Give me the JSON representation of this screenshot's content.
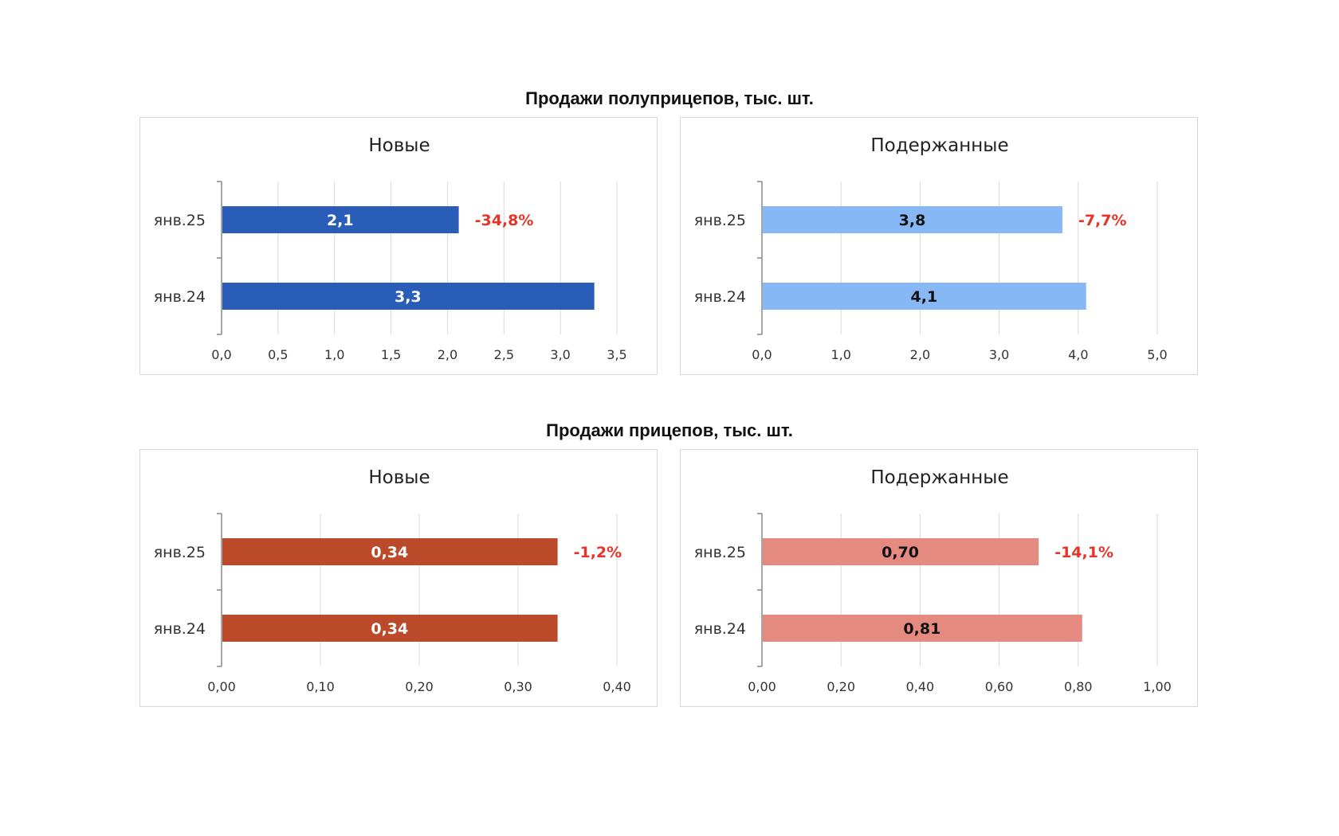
{
  "headers": {
    "semitrailers": "Продажи полуприцепов, тыс. шт.",
    "trailers": "Продажи прицепов, тыс. шт."
  },
  "chart_data": [
    {
      "type": "bar",
      "orientation": "horizontal",
      "group": "semitrailers",
      "title": "Новые",
      "categories": [
        "янв.25",
        "янв.24"
      ],
      "values": [
        2.1,
        3.3
      ],
      "value_labels": [
        "2,1",
        "3,3"
      ],
      "change_label": "-34,8%",
      "xlim": [
        0,
        3.5
      ],
      "ticks": [
        "0,0",
        "0,5",
        "1,0",
        "1,5",
        "2,0",
        "2,5",
        "3,0",
        "3,5"
      ],
      "bar_color": "#2a5db8",
      "label_color": "#ffffff",
      "change_color": "#e8332a",
      "grid": true
    },
    {
      "type": "bar",
      "orientation": "horizontal",
      "group": "semitrailers",
      "title": "Подержанные",
      "categories": [
        "янв.25",
        "янв.24"
      ],
      "values": [
        3.8,
        4.1
      ],
      "value_labels": [
        "3,8",
        "4,1"
      ],
      "change_label": "-7,7%",
      "xlim": [
        0,
        5
      ],
      "ticks": [
        "0,0",
        "1,0",
        "2,0",
        "3,0",
        "4,0",
        "5,0"
      ],
      "bar_color": "#85b8f5",
      "label_color": "#111111",
      "change_color": "#e8332a",
      "grid": true
    },
    {
      "type": "bar",
      "orientation": "horizontal",
      "group": "trailers",
      "title": "Новые",
      "categories": [
        "янв.25",
        "янв.24"
      ],
      "values": [
        0.34,
        0.34
      ],
      "value_labels": [
        "0,34",
        "0,34"
      ],
      "change_label": "-1,2%",
      "xlim": [
        0,
        0.4
      ],
      "ticks": [
        "0,00",
        "0,10",
        "0,20",
        "0,30",
        "0,40"
      ],
      "bar_color": "#bb4a2b",
      "label_color": "#ffffff",
      "change_color": "#e8332a",
      "grid": true
    },
    {
      "type": "bar",
      "orientation": "horizontal",
      "group": "trailers",
      "title": "Подержанные",
      "categories": [
        "янв.25",
        "янв.24"
      ],
      "values": [
        0.7,
        0.81
      ],
      "value_labels": [
        "0,70",
        "0,81"
      ],
      "change_label": "-14,1%",
      "xlim": [
        0,
        1.0
      ],
      "ticks": [
        "0,00",
        "0,20",
        "0,40",
        "0,60",
        "0,80",
        "1,00"
      ],
      "bar_color": "#e58a80",
      "label_color": "#111111",
      "change_color": "#e8332a",
      "grid": true
    }
  ]
}
